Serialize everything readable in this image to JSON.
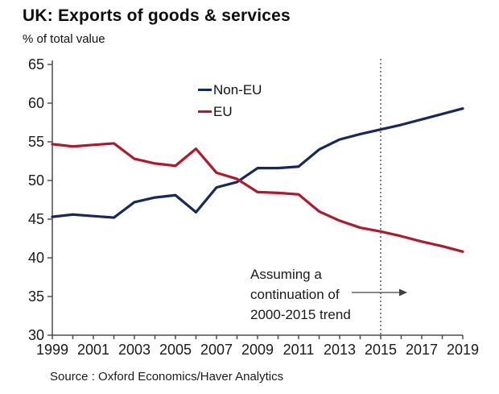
{
  "header": {
    "title": "UK: Exports of goods & services",
    "subtitle": "% of total value"
  },
  "legend": {
    "items": [
      {
        "label": "Non-EU",
        "color": "#17295C"
      },
      {
        "label": "EU",
        "color": "#B2182B"
      }
    ]
  },
  "annotation": {
    "lines": [
      "Assuming a",
      "continuation of",
      "2000-2015 trend"
    ],
    "arrow_icon": "right-arrow"
  },
  "source": "Source : Oxford Economics/Haver Analytics",
  "colors": {
    "non_eu_line": "#17295C",
    "eu_line": "#B2182B",
    "axis": "#4d4d4d",
    "dotted_line": "#4d4d4d",
    "text": "#1a1a1a"
  },
  "chart_data": {
    "type": "line",
    "title": "UK: Exports of goods & services",
    "ylabel": "% of total value",
    "xlabel": "",
    "x": [
      1999,
      2000,
      2001,
      2002,
      2003,
      2004,
      2005,
      2006,
      2007,
      2008,
      2009,
      2010,
      2011,
      2012,
      2013,
      2014,
      2015,
      2016,
      2017,
      2018,
      2019
    ],
    "series": [
      {
        "name": "Non-EU",
        "color": "#17295C",
        "values": [
          45.3,
          45.6,
          45.4,
          45.2,
          47.2,
          47.8,
          48.1,
          45.9,
          49.1,
          49.8,
          51.6,
          51.6,
          51.8,
          54.0,
          55.3,
          56.0,
          56.6,
          57.2,
          57.9,
          58.6,
          59.3
        ]
      },
      {
        "name": "EU",
        "color": "#B2182B",
        "values": [
          54.7,
          54.4,
          54.6,
          54.8,
          52.8,
          52.2,
          51.9,
          54.1,
          51.0,
          50.2,
          48.5,
          48.4,
          48.2,
          46.0,
          44.8,
          43.9,
          43.4,
          42.8,
          42.1,
          41.5,
          40.8
        ]
      }
    ],
    "xticks_labeled": [
      1999,
      2001,
      2003,
      2005,
      2007,
      2009,
      2011,
      2013,
      2015,
      2017,
      2019
    ],
    "xticks_minor_every_year": true,
    "yticks": [
      30,
      35,
      40,
      45,
      50,
      55,
      60,
      65
    ],
    "xlim": [
      1999,
      2019
    ],
    "ylim": [
      30,
      65
    ],
    "grid": false,
    "legend_position": "top-center-inside",
    "vline": {
      "x": 2015,
      "style": "dotted"
    },
    "annotation_text": "Assuming a continuation of 2000-2015 trend"
  }
}
